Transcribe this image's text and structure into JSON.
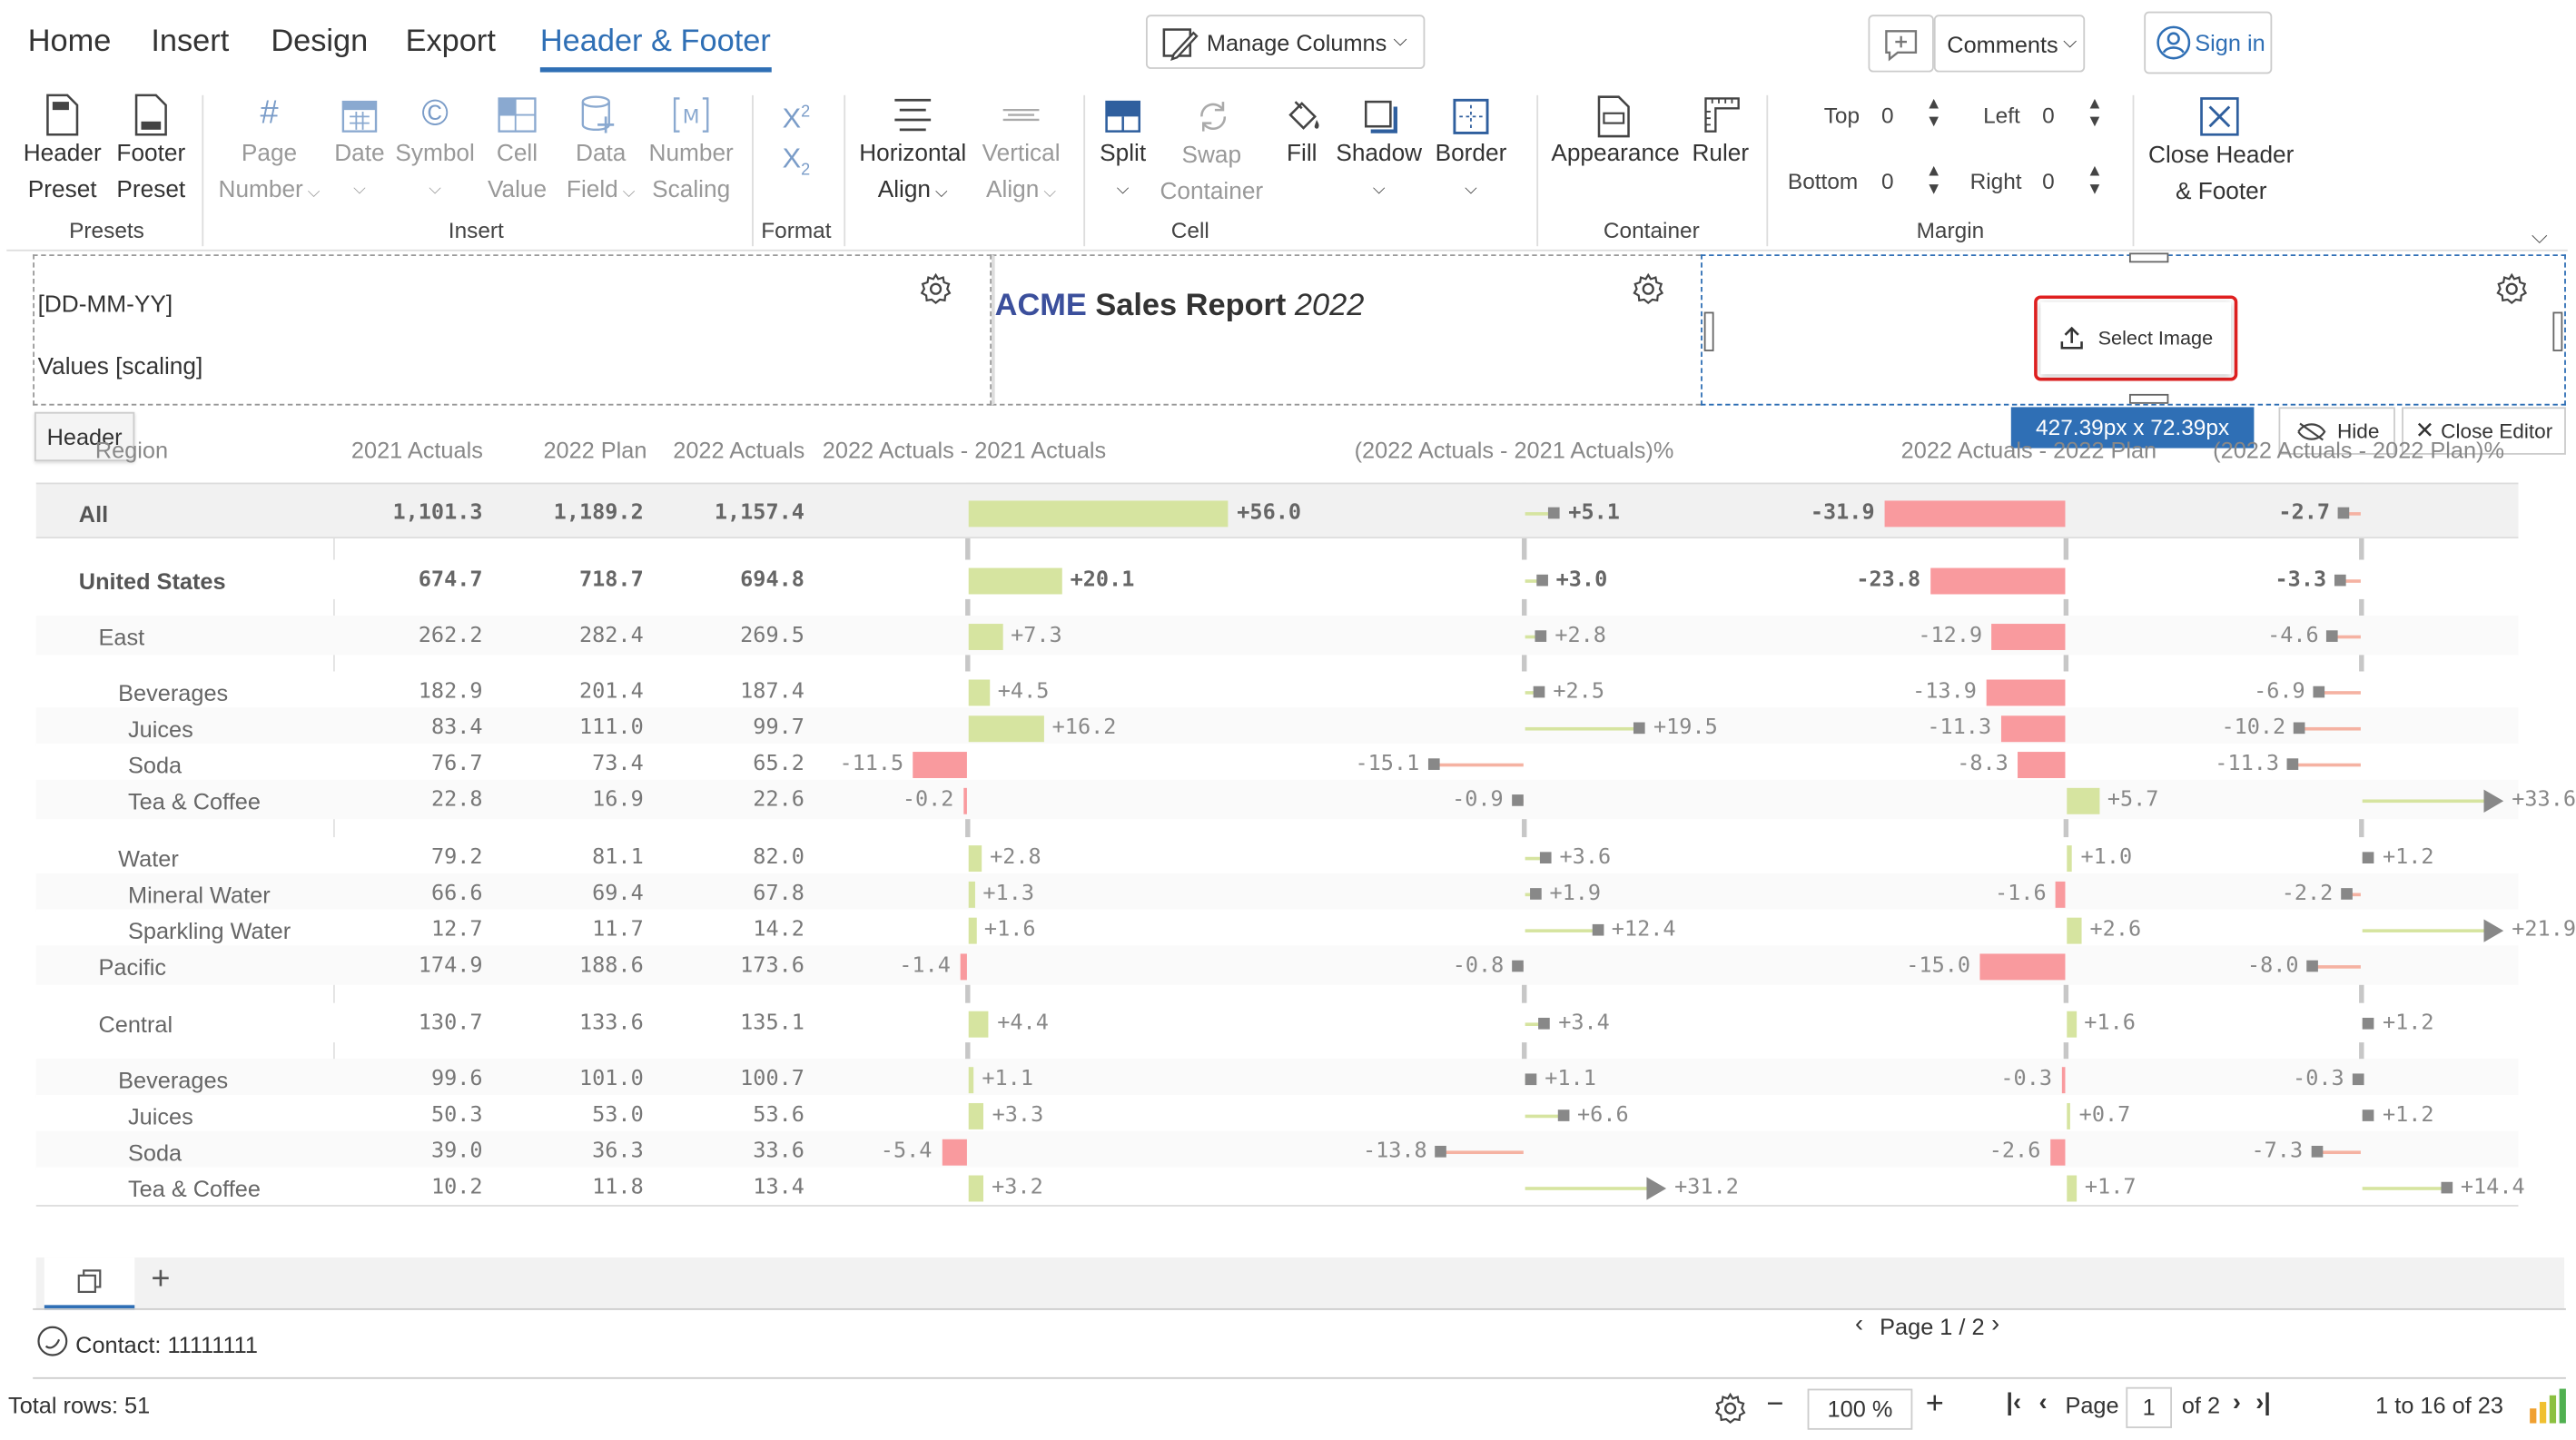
{
  "menu_tabs": [
    "Home",
    "Insert",
    "Design",
    "Export",
    "Header & Footer"
  ],
  "toolbar": {
    "manage_columns": "Manage Columns",
    "comments": "Comments",
    "sign_in": "Sign in"
  },
  "ribbon": {
    "header_preset": [
      "Header",
      "Preset"
    ],
    "footer_preset": [
      "Footer",
      "Preset"
    ],
    "page_number": [
      "Page",
      "Number"
    ],
    "date": "Date",
    "symbol": "Symbol",
    "cell_value": [
      "Cell",
      "Value"
    ],
    "data_field": [
      "Data",
      "Field"
    ],
    "number_scaling": [
      "Number",
      "Scaling"
    ],
    "horizontal_align": [
      "Horizontal",
      "Align"
    ],
    "vertical_align": [
      "Vertical",
      "Align"
    ],
    "split": "Split",
    "swap_container": [
      "Swap",
      "Container"
    ],
    "fill": "Fill",
    "shadow": "Shadow",
    "border": "Border",
    "appearance": "Appearance",
    "ruler": "Ruler",
    "margin": {
      "top_label": "Top",
      "top": "0",
      "left_label": "Left",
      "left": "0",
      "bottom_label": "Bottom",
      "bottom": "0",
      "right_label": "Right",
      "right": "0"
    },
    "close_header_footer": [
      "Close Header",
      "& Footer"
    ],
    "groups": [
      "Presets",
      "Insert",
      "Format",
      "Cell",
      "Container",
      "Margin"
    ]
  },
  "header_editor": {
    "left_lines": [
      "[DD-MM-YY]",
      "Values [scaling]"
    ],
    "center_brand": "ACME",
    "center_title": "Sales Report",
    "center_year": "2022",
    "select_image": "Select Image",
    "size_badge": "427.39px x 72.39px",
    "hide": "Hide",
    "close_editor": "Close Editor",
    "header_tag": "Header"
  },
  "table": {
    "columns": [
      "Region",
      "2021 Actuals",
      "2022 Plan",
      "2022 Actuals",
      "2022 Actuals - 2021 Actuals",
      "(2022 Actuals - 2021 Actuals)%",
      "2022 Actuals - 2022 Plan",
      "(2022 Actuals - 2022 Plan)%"
    ],
    "rows": [
      {
        "label": "All",
        "a21": "1,101.3",
        "plan": "1,189.2",
        "a22": "1,157.4",
        "d1": "+56.0",
        "p1": "+5.1",
        "d2": "-31.9",
        "p2": "-2.7"
      },
      {
        "label": "United States",
        "a21": "674.7",
        "plan": "718.7",
        "a22": "694.8",
        "d1": "+20.1",
        "p1": "+3.0",
        "d2": "-23.8",
        "p2": "-3.3"
      },
      {
        "label": "East",
        "a21": "262.2",
        "plan": "282.4",
        "a22": "269.5",
        "d1": "+7.3",
        "p1": "+2.8",
        "d2": "-12.9",
        "p2": "-4.6"
      },
      {
        "label": "Beverages",
        "a21": "182.9",
        "plan": "201.4",
        "a22": "187.4",
        "d1": "+4.5",
        "p1": "+2.5",
        "d2": "-13.9",
        "p2": "-6.9"
      },
      {
        "label": "Juices",
        "a21": "83.4",
        "plan": "111.0",
        "a22": "99.7",
        "d1": "+16.2",
        "p1": "+19.5",
        "d2": "-11.3",
        "p2": "-10.2"
      },
      {
        "label": "Soda",
        "a21": "76.7",
        "plan": "73.4",
        "a22": "65.2",
        "d1": "-11.5",
        "p1": "-15.1",
        "d2": "-8.3",
        "p2": "-11.3"
      },
      {
        "label": "Tea & Coffee",
        "a21": "22.8",
        "plan": "16.9",
        "a22": "22.6",
        "d1": "-0.2",
        "p1": "-0.9",
        "d2": "+5.7",
        "p2": "+33.6"
      },
      {
        "label": "Water",
        "a21": "79.2",
        "plan": "81.1",
        "a22": "82.0",
        "d1": "+2.8",
        "p1": "+3.6",
        "d2": "+1.0",
        "p2": "+1.2"
      },
      {
        "label": "Mineral Water",
        "a21": "66.6",
        "plan": "69.4",
        "a22": "67.8",
        "d1": "+1.3",
        "p1": "+1.9",
        "d2": "-1.6",
        "p2": "-2.2"
      },
      {
        "label": "Sparkling Water",
        "a21": "12.7",
        "plan": "11.7",
        "a22": "14.2",
        "d1": "+1.6",
        "p1": "+12.4",
        "d2": "+2.6",
        "p2": "+21.9"
      },
      {
        "label": "Pacific",
        "a21": "174.9",
        "plan": "188.6",
        "a22": "173.6",
        "d1": "-1.4",
        "p1": "-0.8",
        "d2": "-15.0",
        "p2": "-8.0"
      },
      {
        "label": "Central",
        "a21": "130.7",
        "plan": "133.6",
        "a22": "135.1",
        "d1": "+4.4",
        "p1": "+3.4",
        "d2": "+1.6",
        "p2": "+1.2"
      },
      {
        "label": "Beverages",
        "a21": "99.6",
        "plan": "101.0",
        "a22": "100.7",
        "d1": "+1.1",
        "p1": "+1.1",
        "d2": "-0.3",
        "p2": "-0.3"
      },
      {
        "label": "Juices",
        "a21": "50.3",
        "plan": "53.0",
        "a22": "53.6",
        "d1": "+3.3",
        "p1": "+6.6",
        "d2": "+0.7",
        "p2": "+1.2"
      },
      {
        "label": "Soda",
        "a21": "39.0",
        "plan": "36.3",
        "a22": "33.6",
        "d1": "-5.4",
        "p1": "-13.8",
        "d2": "-2.6",
        "p2": "-7.3"
      },
      {
        "label": "Tea & Coffee",
        "a21": "10.2",
        "plan": "11.8",
        "a22": "13.4",
        "d1": "+3.2",
        "p1": "+31.2",
        "d2": "+1.7",
        "p2": "+14.4"
      }
    ]
  },
  "footer": {
    "contact": "Contact: 11111111",
    "page_indicator": "Page 1 / 2"
  },
  "status": {
    "total_rows": "Total rows: 51",
    "zoom": "100 %",
    "page_label": "Page",
    "page_value": "1",
    "page_of": "of 2",
    "range": "1 to 16 of 23"
  },
  "colors": {
    "accent": "#2f6fb5",
    "positive": "#d6e4a0",
    "negative": "#f99a9e",
    "highlight": "#e02020"
  }
}
